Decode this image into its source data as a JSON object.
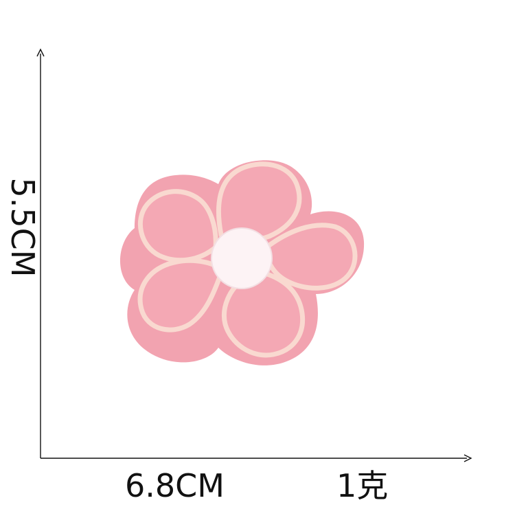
{
  "dimensions": {
    "height_label": "5.5CM",
    "width_label": "6.8CM",
    "weight_label": "1克"
  },
  "colors": {
    "background": "#ffffff",
    "axis": "#111111",
    "patch_felt": "#f2a3b0",
    "petal_fill": "#f4a6b2",
    "petal_outline": "#f9d6cf",
    "center": "#fdf4f6"
  },
  "product": {
    "icon": "pink-flower-patch-icon"
  }
}
